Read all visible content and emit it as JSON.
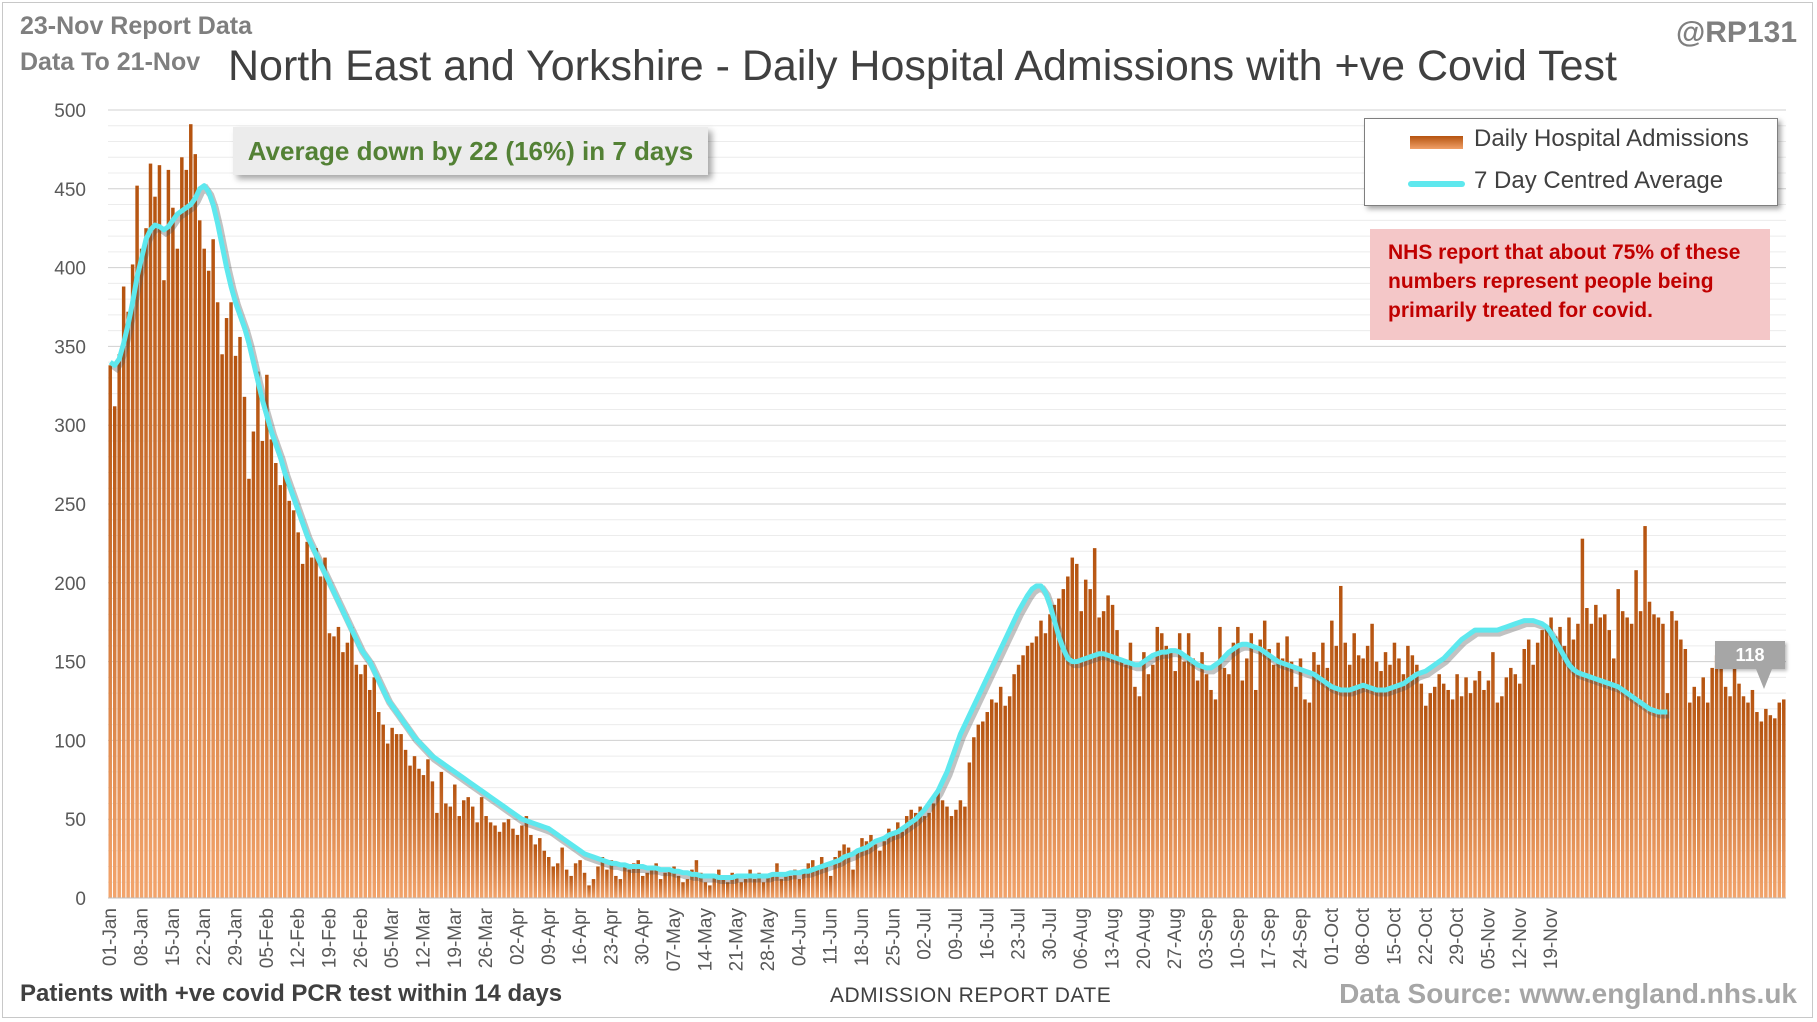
{
  "header": {
    "report_line1": "23-Nov Report Data",
    "report_line2": "Data To 21-Nov",
    "title": "North East and Yorkshire - Daily Hospital Admissions with +ve Covid Test",
    "handle": "@RP131"
  },
  "footer": {
    "left_note": "Patients with +ve covid PCR test within 14 days",
    "xlabel": "ADMISSION REPORT DATE",
    "source": "Data Source: www.england.nhs.uk"
  },
  "annotations": {
    "average_change": "Average down by 22 (16%) in 7 days",
    "nhs_note": "NHS report that about 75% of these numbers represent people being primarily treated for covid.",
    "last_average_label": "118"
  },
  "legend": {
    "bars": "Daily Hospital Admissions",
    "line": "7 Day Centred Average"
  },
  "colors": {
    "bar_dark": "#b5530f",
    "bar_light": "#f0a068",
    "average_line": "#5ee8ee",
    "average_text": "#538135",
    "note_text": "#c00000",
    "note_bg": "#f4c7c8"
  },
  "chart_data": {
    "type": "bar",
    "title": "North East and Yorkshire - Daily Hospital Admissions with +ve Covid Test",
    "xlabel": "ADMISSION REPORT DATE",
    "ylabel": "",
    "ylim": [
      0,
      500
    ],
    "yticks": [
      0,
      50,
      100,
      150,
      200,
      250,
      300,
      350,
      400,
      450,
      500
    ],
    "grid": true,
    "legend_position": "top-right",
    "x_start": "01-Jan",
    "x_end": "21-Nov",
    "xtick_labels": [
      "01-Jan",
      "08-Jan",
      "15-Jan",
      "22-Jan",
      "29-Jan",
      "05-Feb",
      "12-Feb",
      "19-Feb",
      "26-Feb",
      "05-Mar",
      "12-Mar",
      "19-Mar",
      "26-Mar",
      "02-Apr",
      "09-Apr",
      "16-Apr",
      "23-Apr",
      "30-Apr",
      "07-May",
      "14-May",
      "21-May",
      "28-May",
      "04-Jun",
      "11-Jun",
      "18-Jun",
      "25-Jun",
      "02-Jul",
      "09-Jul",
      "16-Jul",
      "23-Jul",
      "30-Jul",
      "06-Aug",
      "13-Aug",
      "20-Aug",
      "27-Aug",
      "03-Sep",
      "10-Sep",
      "17-Sep",
      "24-Sep",
      "01-Oct",
      "08-Oct",
      "15-Oct",
      "22-Oct",
      "29-Oct",
      "05-Nov",
      "12-Nov",
      "19-Nov"
    ],
    "series": [
      {
        "name": "Daily Hospital Admissions",
        "values": [
          338,
          312,
          345,
          388,
          372,
          402,
          452,
          412,
          425,
          466,
          445,
          465,
          392,
          462,
          438,
          412,
          470,
          462,
          491,
          472,
          430,
          412,
          398,
          418,
          378,
          345,
          368,
          378,
          344,
          356,
          318,
          266,
          296,
          334,
          290,
          332,
          291,
          276,
          262,
          272,
          252,
          246,
          232,
          212,
          226,
          216,
          222,
          204,
          216,
          168,
          166,
          172,
          156,
          162,
          172,
          148,
          142,
          148,
          132,
          140,
          118,
          110,
          98,
          108,
          104,
          104,
          94,
          84,
          90,
          82,
          78,
          88,
          74,
          54,
          80,
          60,
          58,
          72,
          52,
          62,
          64,
          58,
          48,
          64,
          52,
          48,
          46,
          42,
          48,
          50,
          44,
          40,
          46,
          52,
          40,
          34,
          38,
          30,
          26,
          20,
          22,
          32,
          18,
          14,
          22,
          24,
          16,
          8,
          12,
          20,
          26,
          18,
          24,
          14,
          12,
          22,
          18,
          22,
          24,
          14,
          16,
          20,
          22,
          12,
          16,
          18,
          20,
          14,
          10,
          12,
          18,
          24,
          16,
          10,
          8,
          14,
          18,
          12,
          10,
          16,
          14,
          10,
          12,
          18,
          12,
          16,
          10,
          14,
          16,
          22,
          12,
          16,
          14,
          18,
          12,
          16,
          22,
          24,
          20,
          26,
          22,
          14,
          26,
          30,
          34,
          32,
          18,
          30,
          38,
          36,
          40,
          34,
          30,
          36,
          44,
          40,
          48,
          42,
          52,
          56,
          54,
          58,
          52,
          54,
          60,
          68,
          62,
          58,
          52,
          56,
          62,
          58,
          86,
          102,
          110,
          112,
          118,
          126,
          124,
          134,
          122,
          128,
          142,
          148,
          154,
          160,
          162,
          166,
          176,
          168,
          180,
          186,
          190,
          196,
          204,
          216,
          212,
          182,
          202,
          196,
          222,
          178,
          182,
          192,
          186,
          170,
          152,
          148,
          162,
          134,
          128,
          156,
          142,
          148,
          172,
          168,
          160,
          156,
          144,
          168,
          150,
          168,
          152,
          138,
          156,
          142,
          132,
          126,
          172,
          146,
          142,
          162,
          172,
          138,
          152,
          168,
          132,
          164,
          176,
          158,
          148,
          162,
          152,
          166,
          150,
          134,
          152,
          126,
          124,
          156,
          148,
          162,
          146,
          176,
          160,
          198,
          162,
          148,
          168,
          154,
          152,
          160,
          174,
          150,
          144,
          156,
          148,
          162,
          152,
          142,
          160,
          154,
          148,
          136,
          122,
          130,
          134,
          142,
          136,
          132,
          126,
          142,
          128,
          140,
          130,
          138,
          144,
          132,
          138,
          156,
          124,
          128,
          140,
          146,
          142,
          136,
          158,
          164,
          148,
          162,
          170,
          172,
          178,
          166,
          172,
          160,
          178,
          164,
          174,
          228,
          184,
          174,
          186,
          178,
          180,
          170,
          152,
          196,
          182,
          178,
          174,
          208,
          182,
          236,
          188,
          180,
          178,
          174,
          130,
          182,
          176,
          164,
          158,
          124,
          134,
          128,
          140,
          124,
          146,
          154,
          152,
          134,
          128,
          148,
          136,
          128,
          124,
          132,
          118,
          112,
          120,
          116,
          114,
          124,
          126
        ]
      },
      {
        "name": "7 Day Centred Average",
        "values": [
          340,
          338,
          342,
          352,
          364,
          378,
          394,
          406,
          418,
          424,
          427,
          426,
          424,
          426,
          430,
          434,
          436,
          438,
          440,
          444,
          450,
          452,
          448,
          440,
          428,
          414,
          400,
          388,
          378,
          370,
          362,
          352,
          340,
          328,
          316,
          306,
          296,
          288,
          280,
          270,
          262,
          254,
          246,
          238,
          230,
          224,
          218,
          212,
          206,
          200,
          194,
          188,
          182,
          176,
          170,
          164,
          158,
          154,
          150,
          144,
          138,
          132,
          126,
          122,
          118,
          114,
          110,
          106,
          102,
          99,
          96,
          93,
          90,
          88,
          86,
          84,
          82,
          80,
          78,
          76,
          74,
          72,
          70,
          68,
          66,
          64,
          62,
          60,
          58,
          56,
          54,
          52,
          50,
          49,
          48,
          47,
          46,
          45,
          44,
          42,
          40,
          38,
          36,
          34,
          32,
          30,
          28,
          27,
          26,
          25,
          24,
          23,
          22,
          22,
          21,
          21,
          20,
          20,
          20,
          20,
          19,
          19,
          19,
          18,
          18,
          18,
          17,
          17,
          16,
          16,
          15,
          15,
          14,
          14,
          14,
          14,
          13,
          13,
          13,
          13,
          14,
          14,
          14,
          14,
          14,
          14,
          14,
          14,
          15,
          15,
          15,
          15,
          16,
          16,
          16,
          17,
          17,
          18,
          19,
          20,
          21,
          22,
          23,
          24,
          26,
          27,
          28,
          30,
          31,
          32,
          34,
          36,
          37,
          38,
          40,
          41,
          42,
          44,
          46,
          48,
          50,
          53,
          56,
          60,
          64,
          68,
          74,
          80,
          88,
          96,
          104,
          110,
          116,
          122,
          128,
          134,
          140,
          146,
          152,
          158,
          164,
          170,
          176,
          182,
          187,
          192,
          196,
          198,
          198,
          194,
          186,
          176,
          166,
          158,
          152,
          150,
          150,
          151,
          152,
          153,
          154,
          155,
          155,
          154,
          153,
          152,
          151,
          150,
          149,
          148,
          148,
          150,
          152,
          154,
          155,
          156,
          156,
          157,
          157,
          156,
          154,
          152,
          150,
          148,
          147,
          146,
          146,
          148,
          150,
          153,
          156,
          158,
          160,
          161,
          161,
          160,
          159,
          158,
          156,
          154,
          152,
          150,
          149,
          148,
          147,
          146,
          145,
          144,
          143,
          142,
          140,
          138,
          136,
          134,
          133,
          132,
          132,
          132,
          133,
          134,
          135,
          134,
          133,
          132,
          132,
          132,
          133,
          134,
          135,
          136,
          138,
          140,
          142,
          143,
          144,
          146,
          148,
          150,
          152,
          155,
          158,
          161,
          164,
          166,
          168,
          170,
          170,
          170,
          170,
          170,
          170,
          171,
          172,
          173,
          174,
          175,
          176,
          176,
          176,
          175,
          174,
          172,
          168,
          163,
          158,
          153,
          148,
          145,
          143,
          142,
          141,
          140,
          139,
          138,
          137,
          136,
          135,
          134,
          132,
          130,
          128,
          126,
          124,
          122,
          120,
          119,
          118,
          118,
          118
        ]
      }
    ]
  }
}
